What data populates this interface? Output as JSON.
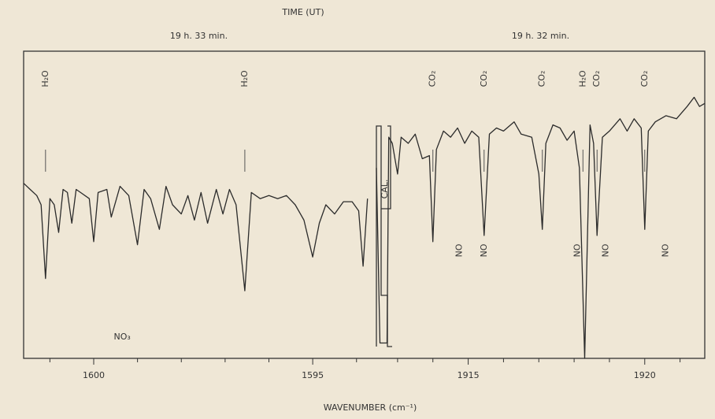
{
  "chart_data": {
    "type": "line",
    "title": "TIME (UT)",
    "xlabel": "WAVENUMBER (cm⁻¹)",
    "cal_label": "CAL.",
    "ylim": [
      0,
      100
    ],
    "color": "#2b2b2b",
    "panels": [
      {
        "time_label": "19 h. 33 min.",
        "xlim": [
          1601.6,
          1593.6
        ],
        "xticks": [
          1600,
          1595
        ],
        "xminorticks": [
          1601,
          1599,
          1598,
          1597,
          1596,
          1594
        ],
        "x": [
          1601.6,
          1601.45,
          1601.3,
          1601.2,
          1601.1,
          1601.0,
          1600.9,
          1600.8,
          1600.7,
          1600.6,
          1600.5,
          1600.4,
          1600.3,
          1600.1,
          1600.0,
          1599.9,
          1599.7,
          1599.6,
          1599.4,
          1599.2,
          1599.0,
          1598.85,
          1598.7,
          1598.5,
          1598.35,
          1598.2,
          1598.0,
          1597.85,
          1597.7,
          1597.55,
          1597.4,
          1597.2,
          1597.05,
          1596.9,
          1596.75,
          1596.55,
          1596.4,
          1596.2,
          1596.0,
          1595.8,
          1595.6,
          1595.4,
          1595.2,
          1595.0,
          1594.85,
          1594.7,
          1594.5,
          1594.3,
          1594.1,
          1593.95,
          1593.85,
          1593.75
        ],
        "values": [
          57,
          55,
          53,
          50,
          26,
          52,
          50,
          41,
          55,
          54,
          44,
          55,
          54,
          52,
          38,
          54,
          55,
          46,
          56,
          53,
          37,
          55,
          52,
          42,
          56,
          50,
          47,
          53,
          45,
          54,
          44,
          55,
          47,
          55,
          50,
          22,
          54,
          52,
          53,
          52,
          53,
          50,
          45,
          33,
          44,
          50,
          47,
          51,
          51,
          48,
          30,
          52
        ],
        "annotations": [
          {
            "x": 1601.1,
            "text": "H₂O"
          },
          {
            "x": 1596.55,
            "text": "H₂O"
          }
        ],
        "lower_labels": [
          {
            "x": 1599.35,
            "text": "NO₃"
          }
        ]
      },
      {
        "time_label": "19 h. 32 min.",
        "xlim": [
          1912.4,
          1921.7
        ],
        "xticks": [
          1915,
          1920
        ],
        "xminorticks": [
          1913,
          1914,
          1916,
          1917,
          1918,
          1919,
          1921
        ],
        "x": [
          1912.4,
          1912.5,
          1912.7,
          1912.75,
          1912.85,
          1913.0,
          1913.1,
          1913.3,
          1913.5,
          1913.7,
          1913.9,
          1914.0,
          1914.1,
          1914.3,
          1914.5,
          1914.7,
          1914.9,
          1915.1,
          1915.3,
          1915.45,
          1915.6,
          1915.8,
          1916.0,
          1916.3,
          1916.5,
          1916.8,
          1917.0,
          1917.1,
          1917.2,
          1917.4,
          1917.6,
          1917.8,
          1918.0,
          1918.15,
          1918.3,
          1918.45,
          1918.55,
          1918.65,
          1918.8,
          1919.0,
          1919.3,
          1919.5,
          1919.7,
          1919.9,
          1920.0,
          1920.1,
          1920.3,
          1920.6,
          1920.9,
          1921.2,
          1921.4,
          1921.55,
          1921.7
        ],
        "values": [
          62,
          5,
          5,
          72,
          70,
          60,
          72,
          70,
          73,
          65,
          66,
          38,
          68,
          74,
          72,
          75,
          70,
          74,
          72,
          40,
          73,
          75,
          74,
          77,
          73,
          72,
          60,
          42,
          70,
          76,
          75,
          71,
          74,
          62,
          0,
          76,
          70,
          40,
          72,
          74,
          78,
          74,
          78,
          75,
          42,
          74,
          77,
          79,
          78,
          82,
          85,
          82,
          83
        ],
        "annotations": [
          {
            "x": 1914.0,
            "text": "CO₂"
          },
          {
            "x": 1915.45,
            "text": "CO₂"
          },
          {
            "x": 1917.1,
            "text": "CO₂"
          },
          {
            "x": 1918.25,
            "text": "H₂O"
          },
          {
            "x": 1918.65,
            "text": "CO₂"
          },
          {
            "x": 1920.0,
            "text": "CO₂"
          }
        ],
        "lower_labels": [
          {
            "x": 1914.75,
            "text": "NO"
          },
          {
            "x": 1915.45,
            "text": "NO"
          },
          {
            "x": 1918.1,
            "text": "NO"
          },
          {
            "x": 1918.9,
            "text": "NO"
          },
          {
            "x": 1920.6,
            "text": "NO"
          }
        ]
      }
    ]
  }
}
